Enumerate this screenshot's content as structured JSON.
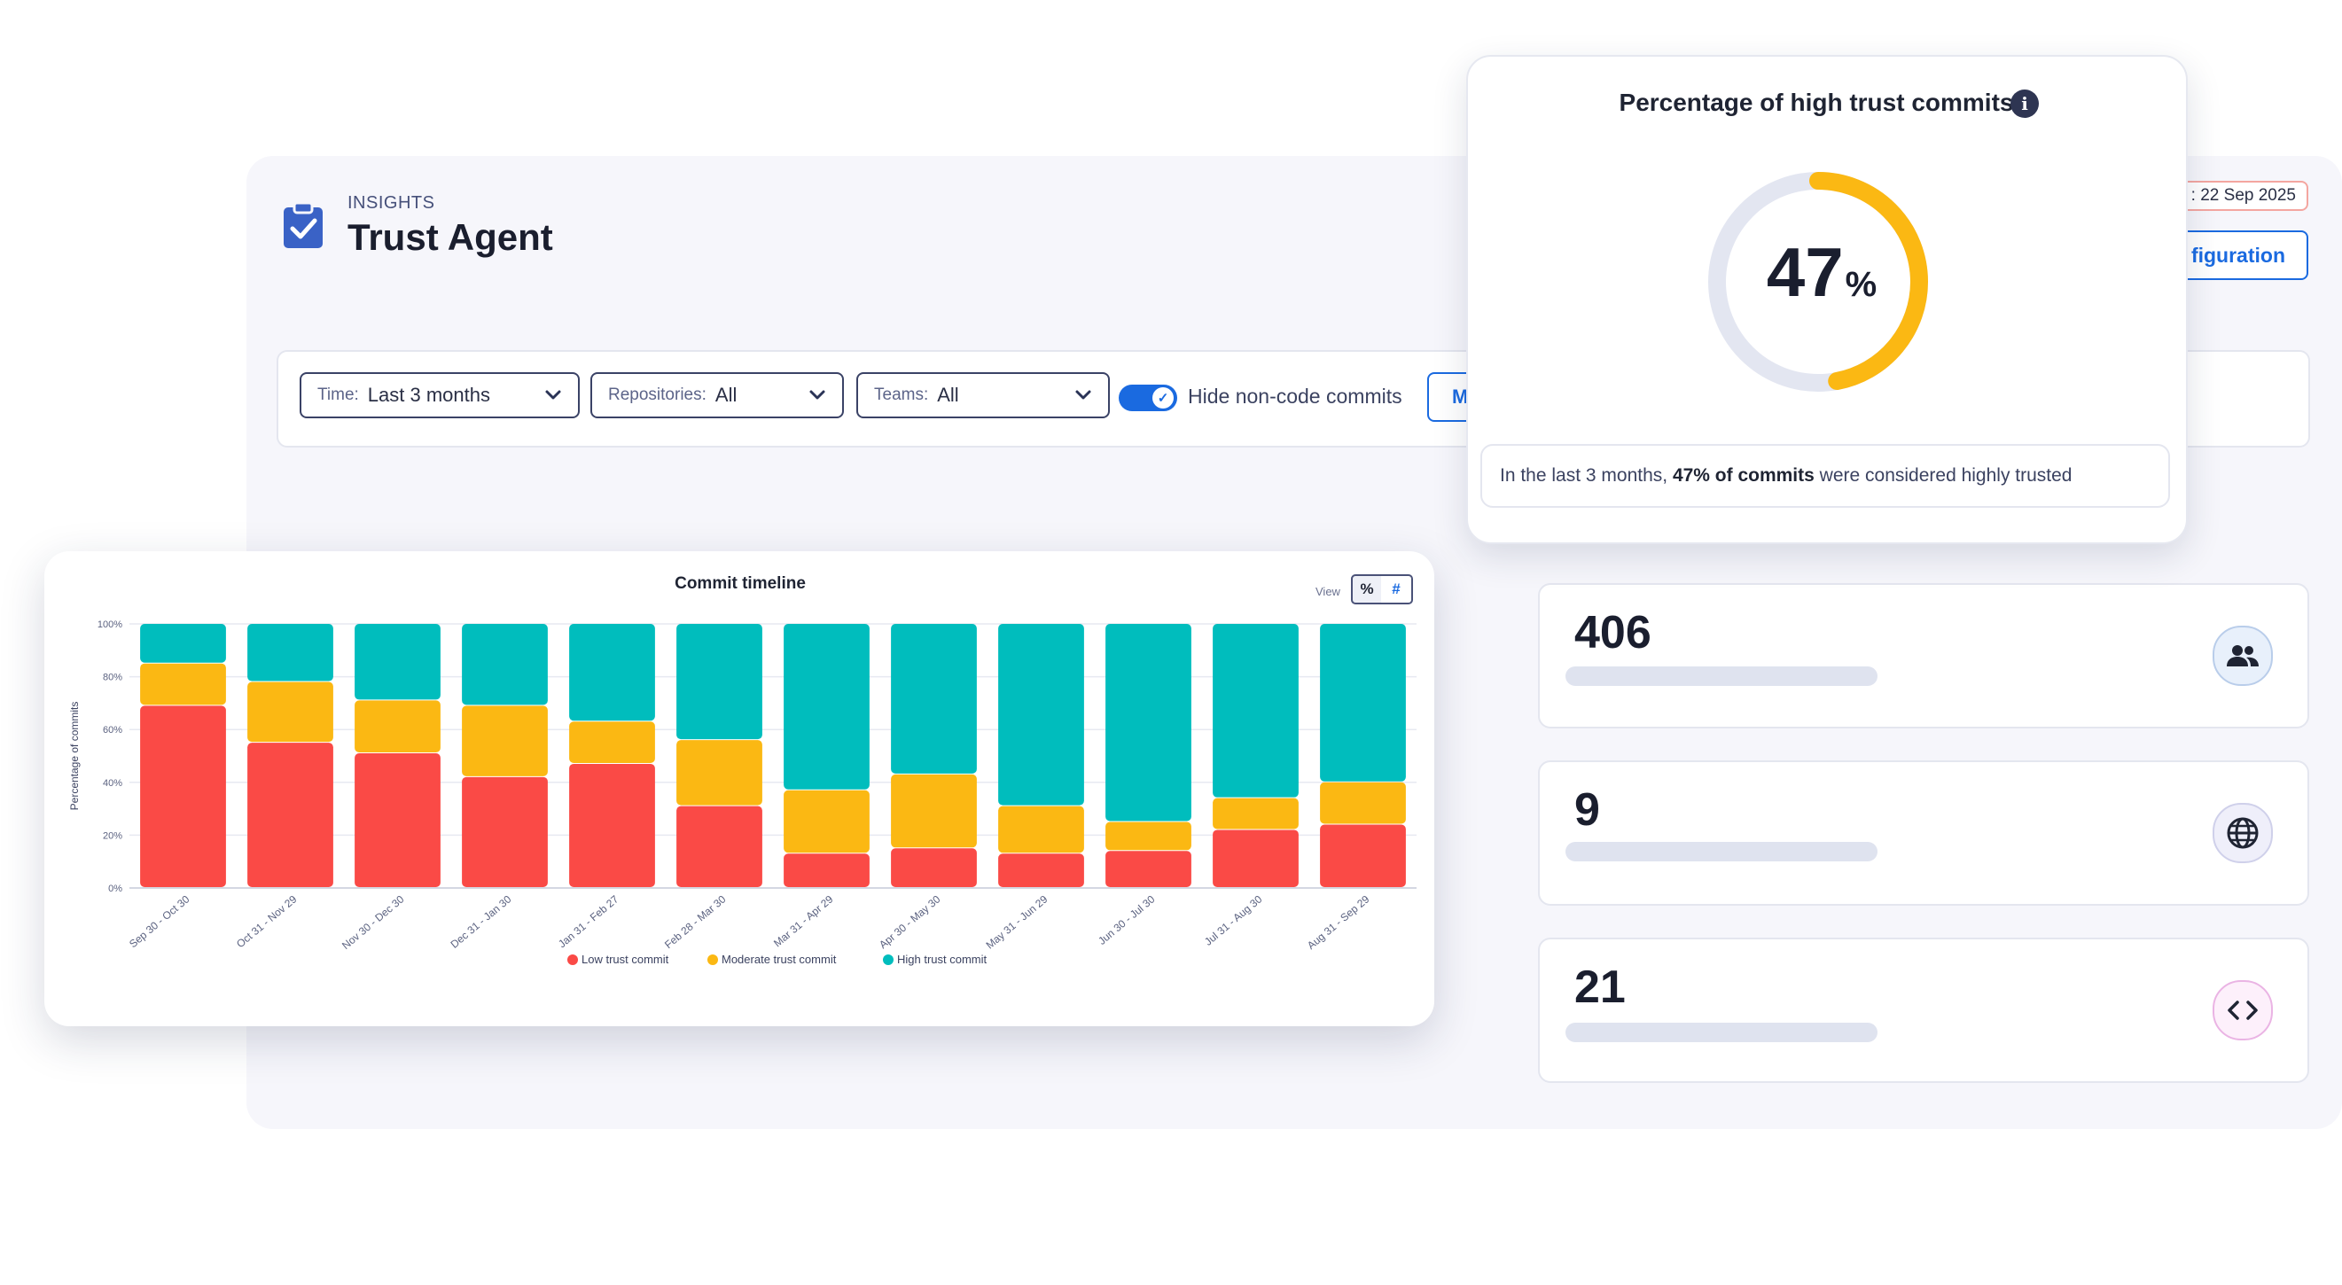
{
  "header": {
    "eyebrow": "INSIGHTS",
    "title": "Trust Agent",
    "icon": "clipboard-check-icon"
  },
  "filters": {
    "time": {
      "label": "Time:",
      "value": "Last 3 months"
    },
    "repositories": {
      "label": "Repositories:",
      "value": "All"
    },
    "teams": {
      "label": "Teams:",
      "value": "All"
    },
    "hide_noncode": {
      "label": "Hide non-code commits",
      "checked": true
    },
    "more_button": "M"
  },
  "top_right": {
    "date_badge": ": 22 Sep 2025",
    "config_button": "figuration"
  },
  "trust_card": {
    "title": "Percentage of high trust commits",
    "value": "47",
    "percent_value": 47,
    "unit": "%",
    "summary_pre": "In the last 3 months, ",
    "summary_bold": "47% of commits",
    "summary_post": " were considered highly trusted"
  },
  "stats": [
    {
      "value": "406",
      "icon": "users-icon"
    },
    {
      "value": "9",
      "icon": "globe-icon"
    },
    {
      "value": "21",
      "icon": "code-icon"
    }
  ],
  "chart_view": {
    "label": "View",
    "pct": "%",
    "num": "#"
  },
  "colors": {
    "low": "#fa4a46",
    "moderate": "#fbb813",
    "high": "#00bdbd",
    "accent": "#1a6ae0",
    "ring_track": "#e3e6f1",
    "ring_fill": "#fbb813"
  },
  "chart_data": {
    "type": "bar",
    "stacked": true,
    "title": "Commit timeline",
    "ylabel": "Percentage of commits",
    "xlabel": "",
    "ylim": [
      0,
      100
    ],
    "yticks": [
      "0%",
      "20%",
      "40%",
      "60%",
      "80%",
      "100%"
    ],
    "categories": [
      "Sep 30 - Oct 30",
      "Oct 31 - Nov 29",
      "Nov 30 - Dec 30",
      "Dec 31 - Jan 30",
      "Jan 31 - Feb 27",
      "Feb 28 - Mar 30",
      "Mar 31 - Apr 29",
      "Apr 30 - May 30",
      "May 31 - Jun 29",
      "Jun 30 - Jul 30",
      "Jul 31 - Aug 30",
      "Aug 31 - Sep 29"
    ],
    "series": [
      {
        "name": "Low trust commit",
        "values": [
          69,
          55,
          51,
          42,
          47,
          31,
          13,
          15,
          13,
          14,
          22,
          24
        ]
      },
      {
        "name": "Moderate trust commit",
        "values": [
          16,
          23,
          20,
          27,
          16,
          25,
          24,
          28,
          18,
          11,
          12,
          16
        ]
      },
      {
        "name": "High trust commit",
        "values": [
          15,
          22,
          29,
          31,
          37,
          44,
          63,
          57,
          69,
          75,
          66,
          60
        ]
      }
    ],
    "legend_position": "bottom"
  }
}
